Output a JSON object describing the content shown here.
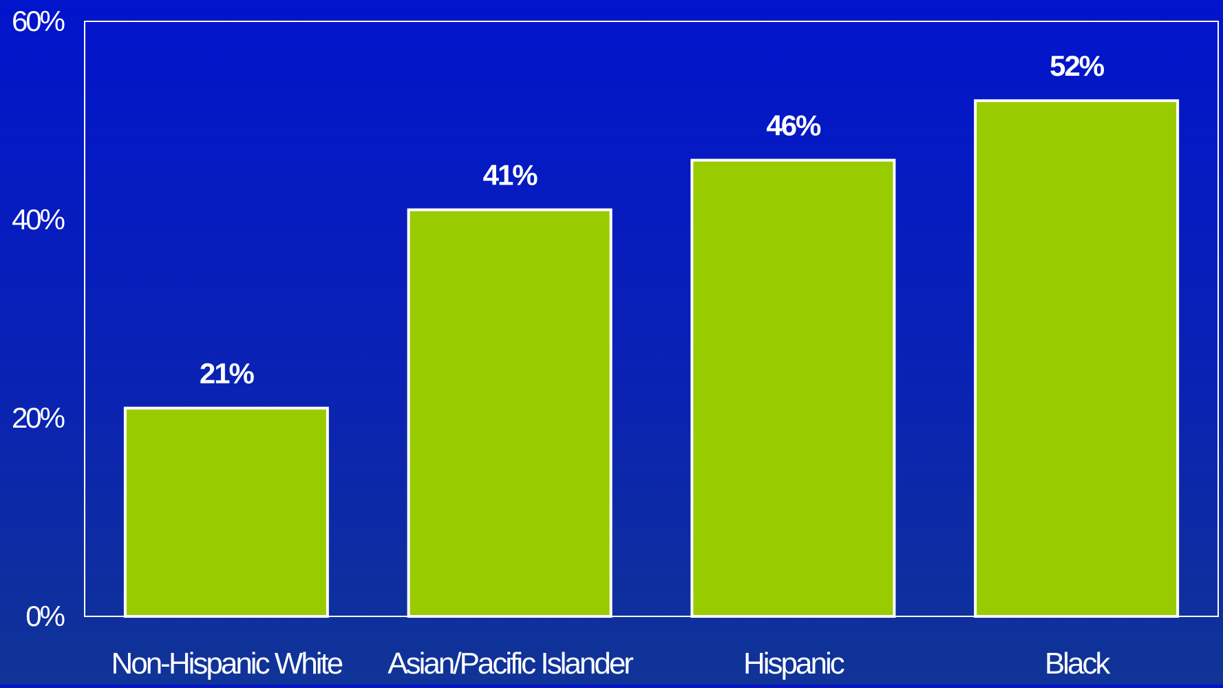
{
  "chart_data": {
    "type": "bar",
    "categories": [
      "Non-Hispanic White",
      "Asian/Pacific Islander",
      "Hispanic",
      "Black"
    ],
    "values": [
      21,
      41,
      46,
      52
    ],
    "data_labels": [
      "21%",
      "41%",
      "46%",
      "52%"
    ],
    "yticks": [
      0,
      20,
      40,
      60
    ],
    "ytick_labels": [
      "0%",
      "20%",
      "40%",
      "60%"
    ],
    "ylim": [
      0,
      60
    ],
    "title": "",
    "xlabel": "",
    "ylabel": "",
    "grid": false,
    "legend": "none",
    "colors": {
      "bar_fill": "#99cc00",
      "bar_stroke": "#ffffff",
      "axis": "#ffffff",
      "text": "#ffffff"
    }
  }
}
